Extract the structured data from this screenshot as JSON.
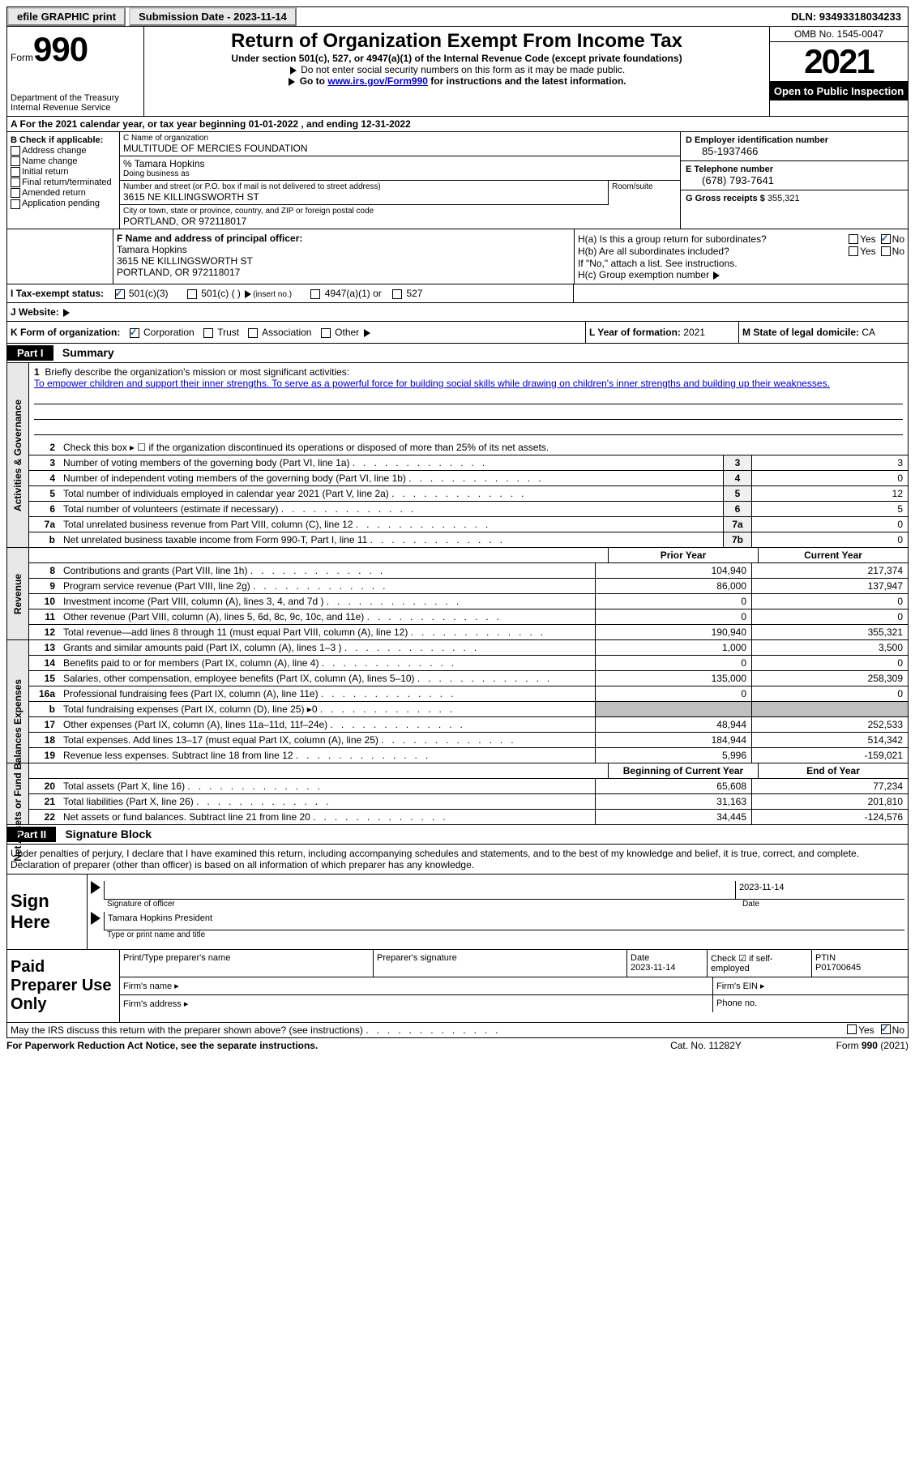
{
  "topbar": {
    "efile": "efile GRAPHIC print",
    "submission": "Submission Date - 2023-11-14",
    "dln": "DLN: 93493318034233"
  },
  "header": {
    "form_word": "Form",
    "form_num": "990",
    "title": "Return of Organization Exempt From Income Tax",
    "subtitle": "Under section 501(c), 527, or 4947(a)(1) of the Internal Revenue Code (except private foundations)",
    "line1": "Do not enter social security numbers on this form as it may be made public.",
    "line2a": "Go to ",
    "line2_link": "www.irs.gov/Form990",
    "line2b": " for instructions and the latest information.",
    "dept": "Department of the Treasury\nInternal Revenue Service",
    "omb": "OMB No. 1545-0047",
    "year": "2021",
    "inspection": "Open to Public Inspection"
  },
  "row_a": "A For the 2021 calendar year, or tax year beginning 01-01-2022   , and ending 12-31-2022",
  "section_b": {
    "label": "B Check if applicable:",
    "opts": [
      "Address change",
      "Name change",
      "Initial return",
      "Final return/terminated",
      "Amended return",
      "Application pending"
    ]
  },
  "section_c": {
    "name_label": "C Name of organization",
    "name": "MULTITUDE OF MERCIES FOUNDATION",
    "care_of": "% Tamara Hopkins",
    "dba_label": "Doing business as",
    "street_label": "Number and street (or P.O. box if mail is not delivered to street address)",
    "room_label": "Room/suite",
    "street": "3615 NE KILLINGSWORTH ST",
    "city_label": "City or town, state or province, country, and ZIP or foreign postal code",
    "city": "PORTLAND, OR  972118017"
  },
  "section_d": {
    "ein_label": "D Employer identification number",
    "ein": "85-1937466",
    "phone_label": "E Telephone number",
    "phone": "(678) 793-7641",
    "gross_label": "G Gross receipts $",
    "gross": "355,321"
  },
  "section_f": {
    "label": "F Name and address of principal officer:",
    "name": "Tamara Hopkins",
    "street": "3615 NE KILLINGSWORTH ST",
    "city": "PORTLAND, OR  972118017"
  },
  "section_h": {
    "ha": "H(a)  Is this a group return for subordinates?",
    "hb": "H(b)  Are all subordinates included?",
    "hb_note": "If \"No,\" attach a list. See instructions.",
    "hc": "H(c)  Group exemption number",
    "yes": "Yes",
    "no": "No"
  },
  "section_i": {
    "label": "I   Tax-exempt status:",
    "o1": "501(c)(3)",
    "o2": "501(c) (  )",
    "o2_note": "(insert no.)",
    "o3": "4947(a)(1) or",
    "o4": "527"
  },
  "section_j": "J   Website:",
  "section_k": {
    "label": "K Form of organization:",
    "o1": "Corporation",
    "o2": "Trust",
    "o3": "Association",
    "o4": "Other"
  },
  "section_l": {
    "label": "L Year of formation:",
    "val": "2021"
  },
  "section_m": {
    "label": "M State of legal domicile:",
    "val": "CA"
  },
  "part1": {
    "header": "Part I",
    "title": "Summary",
    "line1_label": "Briefly describe the organization's mission or most significant activities:",
    "mission": "To empower children and support their inner strengths. To serve as a powerful force for building social skills while drawing on children's inner strengths and building up their weaknesses.",
    "line2": "Check this box ▸ ☐  if the organization discontinued its operations or disposed of more than 25% of its net assets.",
    "prior_year": "Prior Year",
    "current_year": "Current Year",
    "begin_year": "Beginning of Current Year",
    "end_year": "End of Year",
    "tabs": {
      "gov": "Activities & Governance",
      "rev": "Revenue",
      "exp": "Expenses",
      "net": "Net Assets or Fund Balances"
    },
    "rows_gov": [
      {
        "n": "3",
        "d": "Number of voting members of the governing body (Part VI, line 1a)",
        "box": "3",
        "v": "3"
      },
      {
        "n": "4",
        "d": "Number of independent voting members of the governing body (Part VI, line 1b)",
        "box": "4",
        "v": "0"
      },
      {
        "n": "5",
        "d": "Total number of individuals employed in calendar year 2021 (Part V, line 2a)",
        "box": "5",
        "v": "12"
      },
      {
        "n": "6",
        "d": "Total number of volunteers (estimate if necessary)",
        "box": "6",
        "v": "5"
      },
      {
        "n": "7a",
        "d": "Total unrelated business revenue from Part VIII, column (C), line 12",
        "box": "7a",
        "v": "0"
      },
      {
        "n": "b",
        "d": "Net unrelated business taxable income from Form 990-T, Part I, line 11",
        "box": "7b",
        "v": "0"
      }
    ],
    "rows_rev": [
      {
        "n": "8",
        "d": "Contributions and grants (Part VIII, line 1h)",
        "p": "104,940",
        "c": "217,374"
      },
      {
        "n": "9",
        "d": "Program service revenue (Part VIII, line 2g)",
        "p": "86,000",
        "c": "137,947"
      },
      {
        "n": "10",
        "d": "Investment income (Part VIII, column (A), lines 3, 4, and 7d )",
        "p": "0",
        "c": "0"
      },
      {
        "n": "11",
        "d": "Other revenue (Part VIII, column (A), lines 5, 6d, 8c, 9c, 10c, and 11e)",
        "p": "0",
        "c": "0"
      },
      {
        "n": "12",
        "d": "Total revenue—add lines 8 through 11 (must equal Part VIII, column (A), line 12)",
        "p": "190,940",
        "c": "355,321"
      }
    ],
    "rows_exp": [
      {
        "n": "13",
        "d": "Grants and similar amounts paid (Part IX, column (A), lines 1–3 )",
        "p": "1,000",
        "c": "3,500"
      },
      {
        "n": "14",
        "d": "Benefits paid to or for members (Part IX, column (A), line 4)",
        "p": "0",
        "c": "0"
      },
      {
        "n": "15",
        "d": "Salaries, other compensation, employee benefits (Part IX, column (A), lines 5–10)",
        "p": "135,000",
        "c": "258,309"
      },
      {
        "n": "16a",
        "d": "Professional fundraising fees (Part IX, column (A), line 11e)",
        "p": "0",
        "c": "0"
      },
      {
        "n": "b",
        "d": "Total fundraising expenses (Part IX, column (D), line 25) ▸0",
        "p": "",
        "c": "",
        "shaded": true
      },
      {
        "n": "17",
        "d": "Other expenses (Part IX, column (A), lines 11a–11d, 11f–24e)",
        "p": "48,944",
        "c": "252,533"
      },
      {
        "n": "18",
        "d": "Total expenses. Add lines 13–17 (must equal Part IX, column (A), line 25)",
        "p": "184,944",
        "c": "514,342"
      },
      {
        "n": "19",
        "d": "Revenue less expenses. Subtract line 18 from line 12",
        "p": "5,996",
        "c": "-159,021"
      }
    ],
    "rows_net": [
      {
        "n": "20",
        "d": "Total assets (Part X, line 16)",
        "p": "65,608",
        "c": "77,234"
      },
      {
        "n": "21",
        "d": "Total liabilities (Part X, line 26)",
        "p": "31,163",
        "c": "201,810"
      },
      {
        "n": "22",
        "d": "Net assets or fund balances. Subtract line 21 from line 20",
        "p": "34,445",
        "c": "-124,576"
      }
    ]
  },
  "part2": {
    "header": "Part II",
    "title": "Signature Block",
    "declaration": "Under penalties of perjury, I declare that I have examined this return, including accompanying schedules and statements, and to the best of my knowledge and belief, it is true, correct, and complete. Declaration of preparer (other than officer) is based on all information of which preparer has any knowledge.",
    "sign_here": "Sign Here",
    "sig_officer": "Signature of officer",
    "date": "Date",
    "date_val": "2023-11-14",
    "name_title": "Tamara Hopkins  President",
    "type_name": "Type or print name and title",
    "paid_prep": "Paid Preparer Use Only",
    "print_name": "Print/Type preparer's name",
    "prep_sig": "Preparer's signature",
    "prep_date": "Date\n2023-11-14",
    "check_self": "Check ☑ if self-employed",
    "ptin_label": "PTIN",
    "ptin": "P01700645",
    "firm_name": "Firm's name  ▸",
    "firm_ein": "Firm's EIN ▸",
    "firm_addr": "Firm's address ▸",
    "phone": "Phone no."
  },
  "footer": {
    "discuss": "May the IRS discuss this return with the preparer shown above? (see instructions)",
    "yes": "Yes",
    "no": "No",
    "paperwork": "For Paperwork Reduction Act Notice, see the separate instructions.",
    "cat": "Cat. No. 11282Y",
    "form": "Form 990 (2021)"
  }
}
